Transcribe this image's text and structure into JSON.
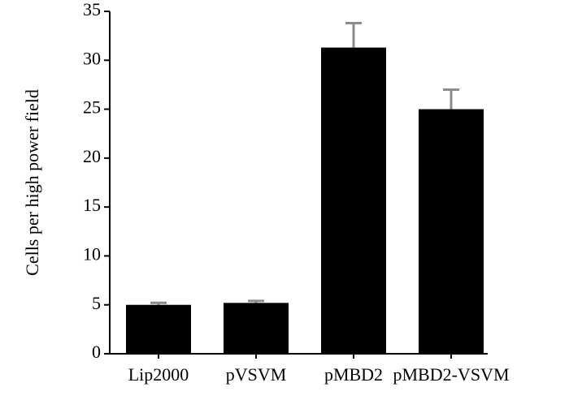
{
  "chart_data": {
    "type": "bar",
    "y_label": "Cells per high power field",
    "categories": [
      "Lip2000",
      "pVSVM",
      "pMBD2",
      "pMBD2-VSVM"
    ],
    "values": [
      5.0,
      5.2,
      31.3,
      25.0
    ],
    "errors": [
      0.2,
      0.2,
      2.5,
      2.0
    ],
    "color": "#000000",
    "error_color": "#8c8c8c",
    "ylim": [
      0,
      35
    ],
    "yticks": [
      0,
      5,
      10,
      15,
      20,
      25,
      30,
      35
    ],
    "grid": false
  }
}
